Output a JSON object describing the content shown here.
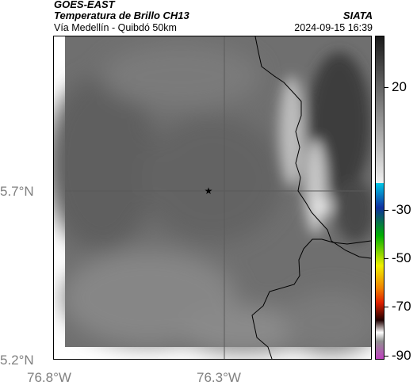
{
  "header": {
    "satellite": "GOES-EAST",
    "product": "Temperatura de Brillo CH13",
    "agency": "SIATA",
    "region": "Vía Medellín - Quibdó 50km",
    "timestamp": "2024-09-15 16:39"
  },
  "axes": {
    "latitude_labels": [
      "5.7°N",
      "5.2°N"
    ],
    "longitude_labels": [
      "76.8°W",
      "76.3°W"
    ]
  },
  "colorbar": {
    "tick_labels": [
      "20",
      "-30",
      "-50",
      "-70",
      "-90"
    ],
    "colors": {
      "gray_top": "#1a1a1a",
      "gray_bottom": "#f0f0f0",
      "cyan": "#00c8e6",
      "blue": "#1030a0",
      "green": "#00b000",
      "yellow": "#f0f000",
      "red": "#e02000",
      "dark": "#200000",
      "magenta": "#c040c0"
    }
  },
  "map": {
    "marker_icon": "star-icon",
    "colors": {
      "background": "#6f6f6f",
      "dark_region": "#3e3e3e",
      "light_band": "#c8c8c8",
      "border_line": "#000000",
      "graticule": "#5a5a5a"
    }
  }
}
